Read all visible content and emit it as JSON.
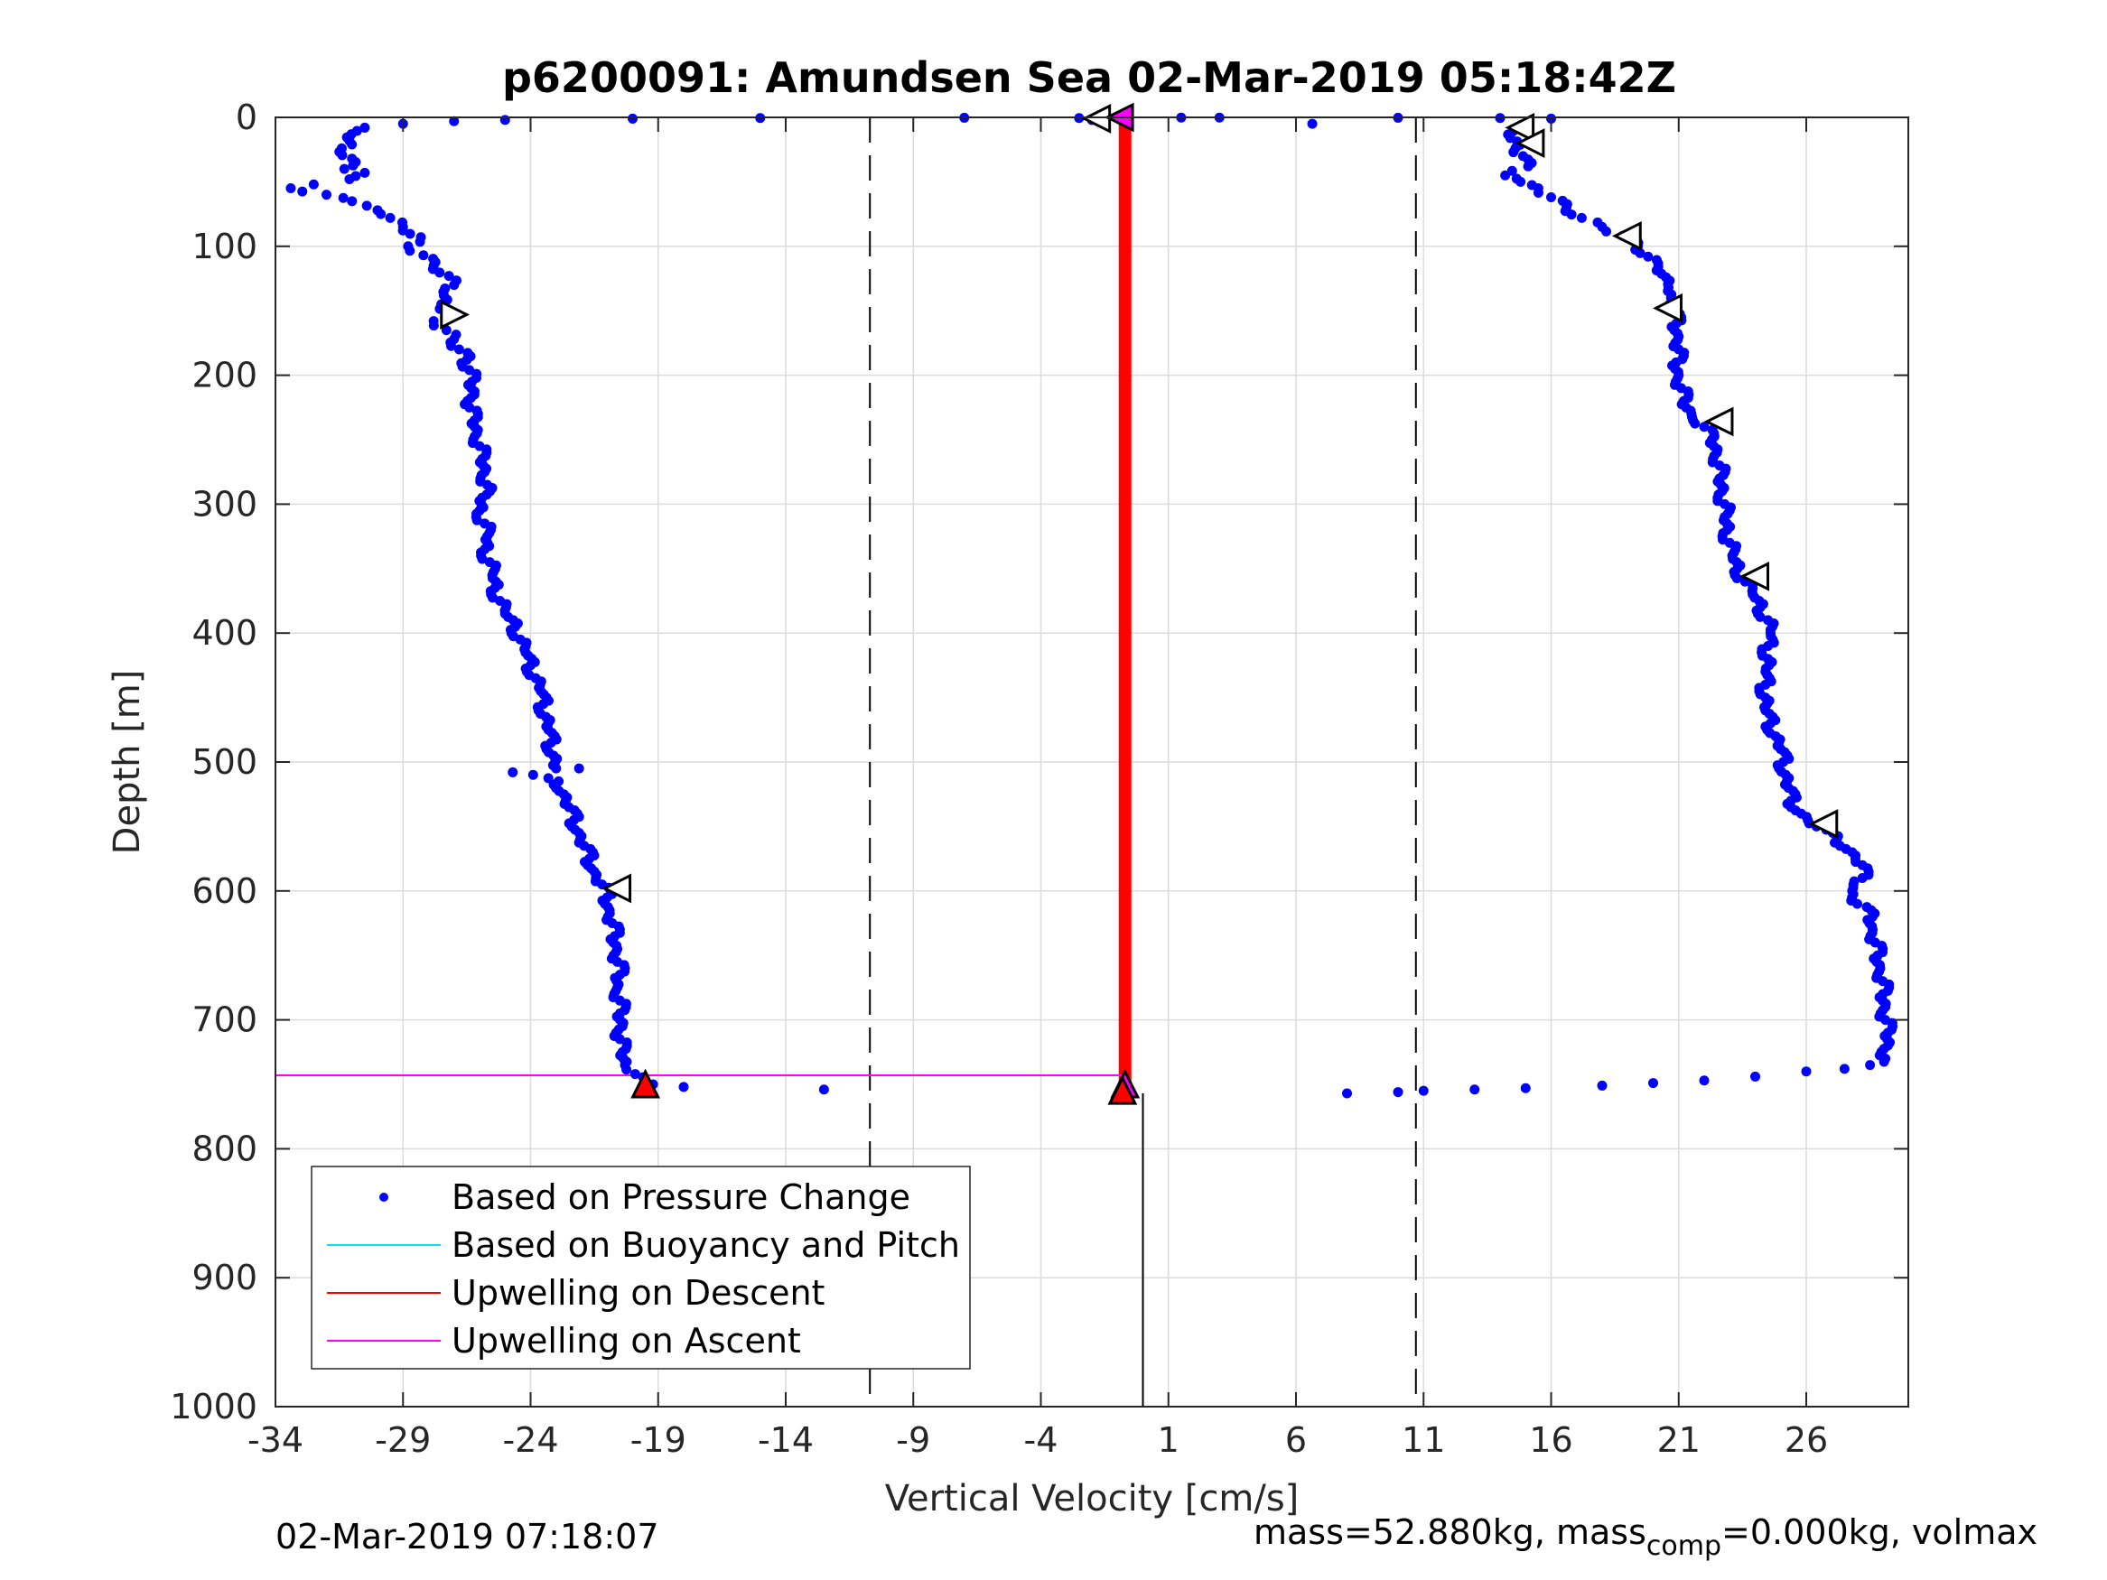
{
  "chart_data": {
    "type": "scatter",
    "title": "p6200091: Amundsen Sea 02-Mar-2019 05:18:42Z",
    "xlabel": "Vertical Velocity [cm/s]",
    "ylabel": "Depth [m]",
    "xlim": [
      -34,
      30
    ],
    "ylim": [
      1000,
      0
    ],
    "x_ticks": [
      -34,
      -29,
      -24,
      -19,
      -14,
      -9,
      -4,
      1,
      6,
      11,
      16,
      21,
      26
    ],
    "y_ticks": [
      0,
      100,
      200,
      300,
      400,
      500,
      600,
      700,
      800,
      900,
      1000
    ],
    "grid": true,
    "legend_position": "bottom-left",
    "legend": [
      {
        "label": "Based on Pressure Change",
        "color": "#0000ff",
        "style": "dot"
      },
      {
        "label": "Based on Buoyancy and Pitch",
        "color": "#00e5ee",
        "style": "line"
      },
      {
        "label": "Upwelling on Descent",
        "color": "#ff0000",
        "style": "line"
      },
      {
        "label": "Upwelling on Ascent",
        "color": "#ff00ff",
        "style": "line"
      }
    ],
    "reference_lines": {
      "dashed_vertical_x": [
        -10.7,
        10.7
      ],
      "solid_vertical_x": 0,
      "solid_vertical_depth_range": [
        757,
        1000
      ]
    },
    "series": [
      {
        "name": "Based on Pressure Change",
        "color": "#0000ff",
        "profiles": [
          {
            "points": [
              [
                -31.1,
                18
              ],
              [
                -31.4,
                24
              ],
              [
                -31.0,
                32
              ],
              [
                -31.3,
                40
              ],
              [
                -30.5,
                43
              ],
              [
                -31.1,
                48
              ],
              [
                -32.5,
                52
              ],
              [
                -33.4,
                55
              ],
              [
                -32.0,
                60
              ],
              [
                -31.0,
                65
              ],
              [
                -30.0,
                72
              ],
              [
                -29.5,
                78
              ],
              [
                -29.0,
                85
              ],
              [
                -28.3,
                93
              ],
              [
                -28.8,
                100
              ],
              [
                -28.2,
                107
              ],
              [
                -27.8,
                115
              ],
              [
                -27.2,
                123
              ],
              [
                -27.0,
                130
              ],
              [
                -27.4,
                138
              ],
              [
                -27.5,
                145
              ],
              [
                -27.2,
                152
              ],
              [
                -27.8,
                158
              ],
              [
                -27.3,
                165
              ],
              [
                -27.0,
                172
              ],
              [
                -26.8,
                180
              ],
              [
                -26.5,
                188
              ],
              [
                -26.4,
                196
              ],
              [
                -26.3,
                205
              ],
              [
                -26.2,
                215
              ],
              [
                -26.4,
                225
              ],
              [
                -26.2,
                235
              ],
              [
                -26.1,
                245
              ],
              [
                -26.0,
                255
              ],
              [
                -25.9,
                265
              ],
              [
                -25.8,
                275
              ],
              [
                -25.7,
                285
              ],
              [
                -25.9,
                295
              ],
              [
                -26.0,
                305
              ],
              [
                -25.8,
                315
              ],
              [
                -25.7,
                325
              ],
              [
                -25.8,
                335
              ],
              [
                -25.6,
                345
              ],
              [
                -25.5,
                355
              ],
              [
                -25.4,
                365
              ],
              [
                -25.2,
                375
              ],
              [
                -25.0,
                385
              ],
              [
                -24.6,
                395
              ],
              [
                -24.4,
                405
              ],
              [
                -24.2,
                415
              ],
              [
                -24.0,
                425
              ],
              [
                -23.8,
                435
              ],
              [
                -23.6,
                445
              ],
              [
                -23.5,
                455
              ],
              [
                -23.4,
                465
              ],
              [
                -23.3,
                475
              ],
              [
                -23.2,
                485
              ],
              [
                -23.1,
                495
              ],
              [
                -23.0,
                505
              ],
              [
                -22.9,
                515
              ],
              [
                -22.7,
                525
              ],
              [
                -22.5,
                535
              ],
              [
                -22.3,
                545
              ],
              [
                -22.1,
                555
              ],
              [
                -21.9,
                565
              ],
              [
                -21.7,
                575
              ],
              [
                -21.5,
                585
              ],
              [
                -21.2,
                595
              ],
              [
                -21.0,
                605
              ],
              [
                -20.9,
                615
              ],
              [
                -20.8,
                625
              ],
              [
                -20.7,
                635
              ],
              [
                -20.6,
                645
              ],
              [
                -20.6,
                655
              ],
              [
                -20.5,
                665
              ],
              [
                -20.6,
                675
              ],
              [
                -20.5,
                685
              ],
              [
                -20.5,
                695
              ],
              [
                -20.4,
                705
              ],
              [
                -20.5,
                715
              ],
              [
                -20.4,
                725
              ],
              [
                -20.3,
                735
              ],
              [
                -19.9,
                742
              ],
              [
                -19.5,
                747
              ],
              [
                -19.2,
                750
              ],
              [
                -18.0,
                752
              ],
              [
                -12.5,
                754
              ],
              [
                -30.5,
                8
              ],
              [
                -29.0,
                5
              ],
              [
                -27.0,
                3
              ],
              [
                -25.0,
                2
              ],
              [
                -20.0,
                1
              ],
              [
                -15.0,
                0.5
              ],
              [
                -24.7,
                508
              ],
              [
                -23.9,
                510
              ],
              [
                -22.1,
                505
              ]
            ]
          },
          {
            "points": [
              [
                14.8,
                8
              ],
              [
                14.4,
                16
              ],
              [
                14.6,
                24
              ],
              [
                14.9,
                30
              ],
              [
                15.1,
                38
              ],
              [
                14.2,
                45
              ],
              [
                14.8,
                50
              ],
              [
                15.5,
                55
              ],
              [
                16.0,
                62
              ],
              [
                16.6,
                70
              ],
              [
                17.2,
                78
              ],
              [
                18.0,
                85
              ],
              [
                18.8,
                92
              ],
              [
                19.4,
                100
              ],
              [
                19.8,
                108
              ],
              [
                20.2,
                116
              ],
              [
                20.5,
                124
              ],
              [
                20.6,
                132
              ],
              [
                20.7,
                140
              ],
              [
                20.8,
                150
              ],
              [
                20.9,
                160
              ],
              [
                21.0,
                170
              ],
              [
                21.0,
                180
              ],
              [
                20.9,
                190
              ],
              [
                21.0,
                200
              ],
              [
                21.1,
                210
              ],
              [
                21.2,
                220
              ],
              [
                21.5,
                230
              ],
              [
                22.0,
                240
              ],
              [
                22.3,
                250
              ],
              [
                22.5,
                260
              ],
              [
                22.6,
                270
              ],
              [
                22.6,
                280
              ],
              [
                22.7,
                290
              ],
              [
                22.8,
                300
              ],
              [
                22.8,
                310
              ],
              [
                22.9,
                320
              ],
              [
                23.0,
                330
              ],
              [
                23.1,
                340
              ],
              [
                23.3,
                350
              ],
              [
                23.6,
                360
              ],
              [
                23.9,
                370
              ],
              [
                24.2,
                380
              ],
              [
                24.5,
                390
              ],
              [
                24.6,
                400
              ],
              [
                24.5,
                410
              ],
              [
                24.5,
                420
              ],
              [
                24.4,
                430
              ],
              [
                24.4,
                440
              ],
              [
                24.4,
                450
              ],
              [
                24.4,
                460
              ],
              [
                24.6,
                470
              ],
              [
                24.8,
                480
              ],
              [
                25.0,
                490
              ],
              [
                25.1,
                500
              ],
              [
                25.2,
                510
              ],
              [
                25.3,
                520
              ],
              [
                25.4,
                530
              ],
              [
                25.8,
                540
              ],
              [
                26.4,
                550
              ],
              [
                27.2,
                560
              ],
              [
                27.8,
                570
              ],
              [
                28.2,
                580
              ],
              [
                28.2,
                590
              ],
              [
                27.8,
                600
              ],
              [
                28.0,
                610
              ],
              [
                28.6,
                620
              ],
              [
                28.6,
                630
              ],
              [
                28.7,
                640
              ],
              [
                28.8,
                650
              ],
              [
                28.9,
                660
              ],
              [
                29.0,
                670
              ],
              [
                29.0,
                680
              ],
              [
                29.1,
                690
              ],
              [
                29.1,
                700
              ],
              [
                29.2,
                710
              ],
              [
                29.2,
                720
              ],
              [
                29.1,
                730
              ],
              [
                28.5,
                735
              ],
              [
                27.5,
                738
              ],
              [
                26.0,
                740
              ],
              [
                24.0,
                744
              ],
              [
                22.0,
                747
              ],
              [
                20.0,
                749
              ],
              [
                18.0,
                751
              ],
              [
                15.0,
                753
              ],
              [
                13.0,
                754
              ],
              [
                11.0,
                755
              ],
              [
                8.0,
                757
              ],
              [
                10.0,
                756
              ],
              [
                16.0,
                1
              ],
              [
                14.0,
                0.5
              ],
              [
                10.0,
                0.3
              ],
              [
                3.0,
                0.2
              ],
              [
                1.5,
                0.2
              ],
              [
                -7.0,
                0.3
              ],
              [
                -2.5,
                0.5
              ],
              [
                -2.0,
                2
              ]
            ]
          }
        ]
      },
      {
        "name": "Upwelling on Descent",
        "color": "#ff0000",
        "line": {
          "x": [
            -0.7,
            -0.7
          ],
          "y": [
            0,
            752
          ]
        }
      },
      {
        "name": "Upwelling on Ascent",
        "color": "#ff00ff",
        "lines": [
          {
            "x": [
              -34,
              -0.7
            ],
            "y": [
              0,
              0
            ]
          },
          {
            "x": [
              -34,
              -0.7
            ],
            "y": [
              743,
              743
            ]
          }
        ]
      }
    ],
    "markers": [
      {
        "shape": "triangle-left",
        "x": -1.8,
        "y": 1,
        "fill": "#ffffff"
      },
      {
        "shape": "triangle-left",
        "x": -0.9,
        "y": 0,
        "fill": "#ff00ff"
      },
      {
        "shape": "triangle-left",
        "x": 14.8,
        "y": 8,
        "fill": "#ffffff"
      },
      {
        "shape": "triangle-left",
        "x": 15.2,
        "y": 20,
        "fill": "#ffffff"
      },
      {
        "shape": "triangle-left",
        "x": 19.0,
        "y": 92,
        "fill": "#ffffff"
      },
      {
        "shape": "triangle-left",
        "x": 20.6,
        "y": 148,
        "fill": "#ffffff"
      },
      {
        "shape": "triangle-left",
        "x": 22.6,
        "y": 236,
        "fill": "#ffffff"
      },
      {
        "shape": "triangle-left",
        "x": 24.0,
        "y": 356,
        "fill": "#ffffff"
      },
      {
        "shape": "triangle-left",
        "x": 26.7,
        "y": 548,
        "fill": "#ffffff"
      },
      {
        "shape": "triangle-right",
        "x": -27.0,
        "y": 153,
        "fill": "#ffffff"
      },
      {
        "shape": "triangle-left",
        "x": -20.6,
        "y": 598,
        "fill": "#ffffff"
      },
      {
        "shape": "triangle-up",
        "x": -19.5,
        "y": 750,
        "fill": "#ff0000"
      },
      {
        "shape": "triangle-up",
        "x": -0.7,
        "y": 750,
        "fill": "#ff00ff"
      },
      {
        "shape": "triangle-up",
        "x": -0.8,
        "y": 755,
        "fill": "#ff0000"
      }
    ]
  },
  "footer": {
    "timestamp": "02-Mar-2019 07:18:07",
    "mass_prefix": "mass=52.880kg, mass",
    "mass_sub": "comp",
    "mass_suffix": "=0.000kg, volmax"
  }
}
